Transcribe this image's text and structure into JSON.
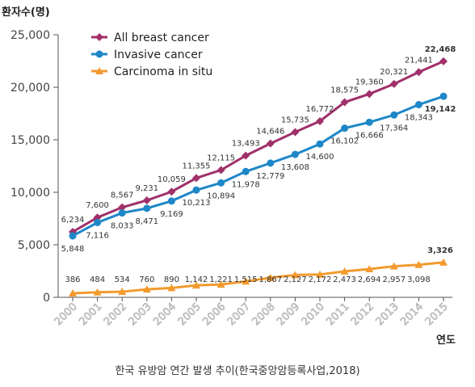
{
  "chart_data": {
    "type": "line",
    "ylabel": "환자수(명)",
    "xlabel": "연도",
    "x": [
      "2000",
      "2001",
      "2002",
      "2003",
      "2004",
      "2005",
      "2006",
      "2007",
      "2008",
      "2009",
      "2010",
      "2011",
      "2012",
      "2013",
      "2014",
      "2015"
    ],
    "ylim": [
      0,
      25000
    ],
    "yticks": [
      0,
      5000,
      10000,
      15000,
      20000,
      25000
    ],
    "ytick_labels": [
      "0",
      "5,000",
      "10,000",
      "15,000",
      "20,000",
      "25,000"
    ],
    "grid": false,
    "legend_position": "top-left",
    "series": [
      {
        "name": "All breast cancer",
        "color": "#a0306a",
        "marker": "diamond",
        "values": [
          6234,
          7600,
          8567,
          9231,
          10059,
          11355,
          12115,
          13493,
          14646,
          15735,
          16772,
          18575,
          19360,
          20321,
          21441,
          22468
        ],
        "labels": [
          "6,234",
          "7,600",
          "8,567",
          "9,231",
          "10,059",
          "11,355",
          "12,115",
          "13,493",
          "14,646",
          "15,735",
          "16,772",
          "18,575",
          "19,360",
          "20,321",
          "21,441",
          "22,468"
        ]
      },
      {
        "name": "Invasive cancer",
        "color": "#1e87c8",
        "marker": "circle",
        "values": [
          5848,
          7116,
          8033,
          8471,
          9169,
          10213,
          10894,
          11978,
          12779,
          13608,
          14600,
          16102,
          16666,
          17364,
          18343,
          19142
        ],
        "labels": [
          "5,848",
          "7,116",
          "8,033",
          "8,471",
          "9,169",
          "10,213",
          "10,894",
          "11,978",
          "12,779",
          "13,608",
          "14,600",
          "16,102",
          "16,666",
          "17,364",
          "18,343",
          "19,142"
        ]
      },
      {
        "name": "Carcinoma in situ",
        "color": "#f39a2e",
        "marker": "triangle",
        "values": [
          386,
          484,
          534,
          760,
          890,
          1142,
          1221,
          1515,
          1867,
          2127,
          2172,
          2473,
          2694,
          2957,
          3098,
          3326
        ],
        "labels": [
          "386",
          "484",
          "534",
          "760",
          "890",
          "1,142",
          "1,221",
          "1,515",
          "1,867",
          "2,127",
          "2,172",
          "2,473",
          "2,694",
          "2,957",
          "3,098",
          "3,326"
        ]
      }
    ]
  },
  "caption": "한국 유방암 연간 발생 추이(한국중앙암등록사업,2018)"
}
